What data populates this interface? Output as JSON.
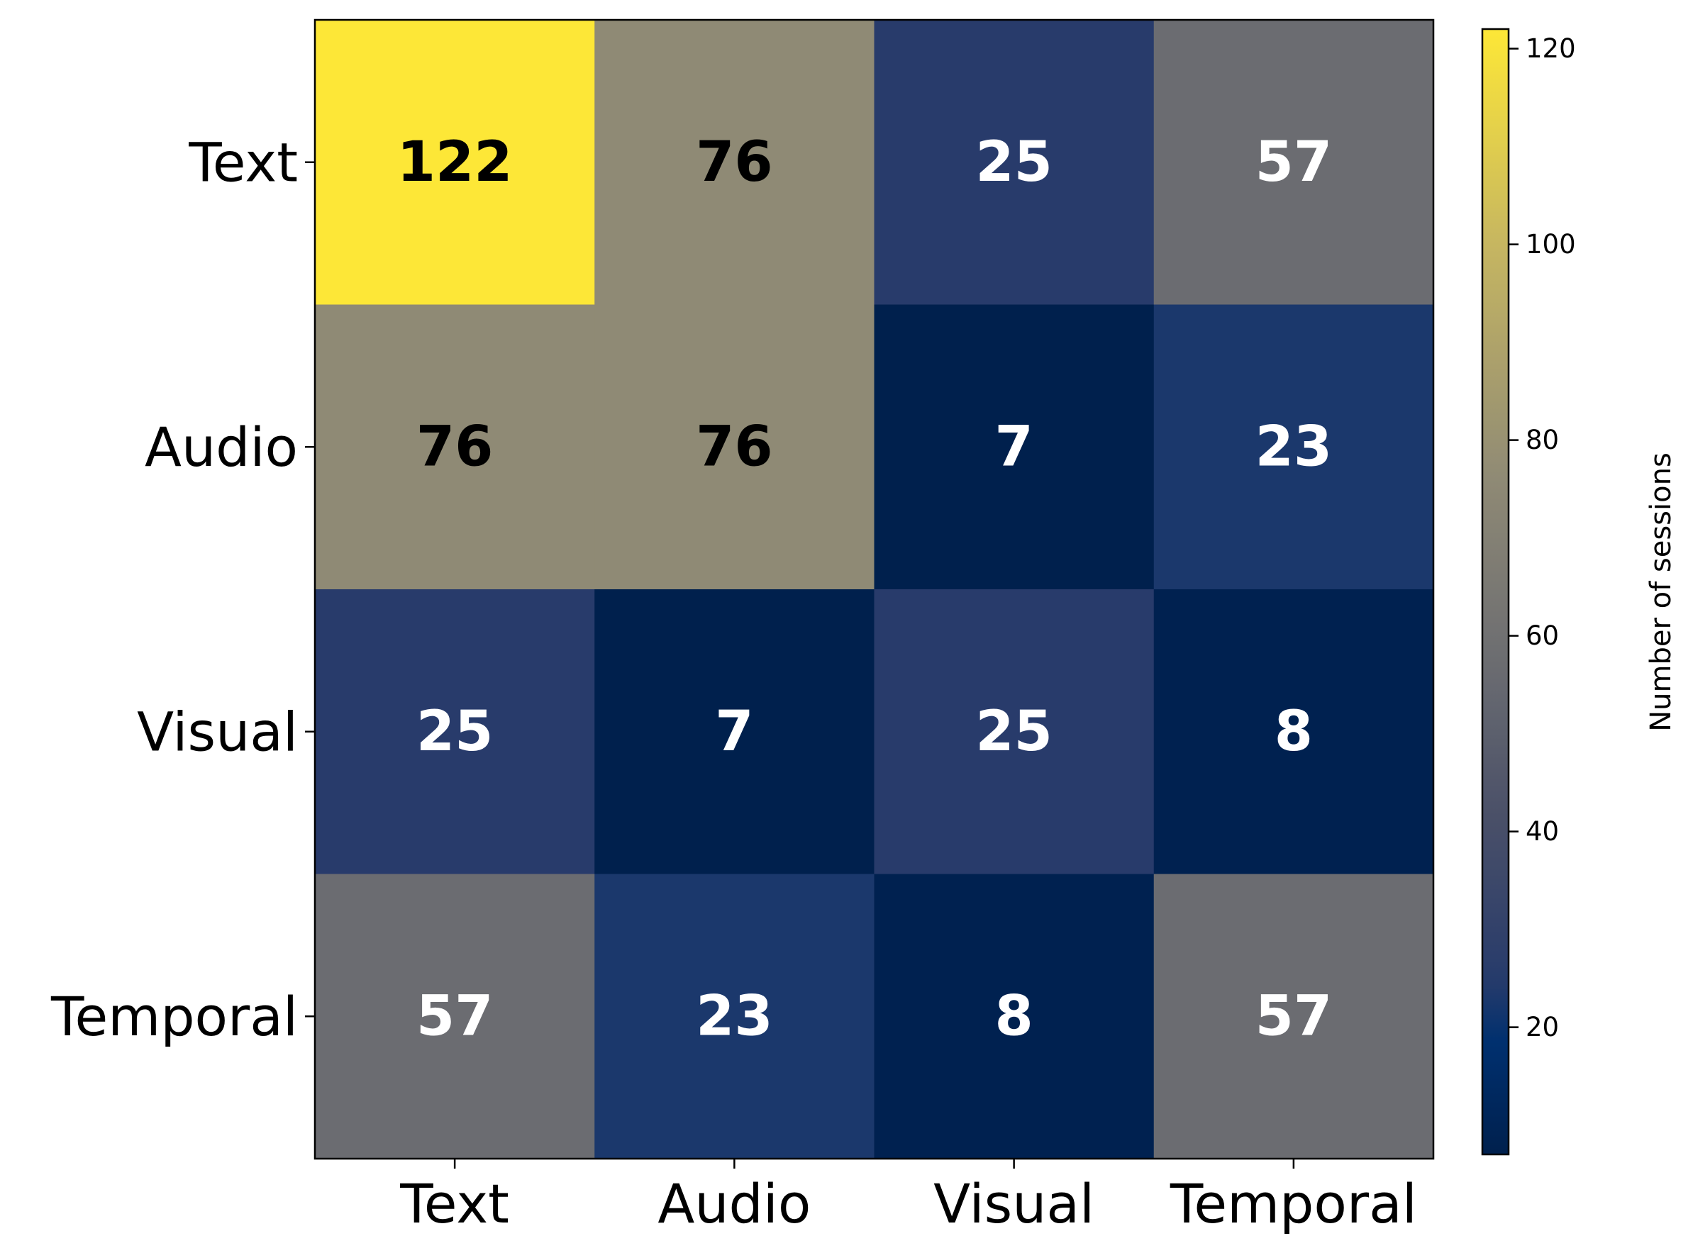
{
  "chart_data": {
    "type": "heatmap",
    "row_labels": [
      "Text",
      "Audio",
      "Visual",
      "Temporal"
    ],
    "col_labels": [
      "Text",
      "Audio",
      "Visual",
      "Temporal"
    ],
    "values": [
      [
        122,
        76,
        25,
        57
      ],
      [
        76,
        76,
        7,
        23
      ],
      [
        25,
        7,
        25,
        8
      ],
      [
        57,
        23,
        8,
        57
      ]
    ],
    "colormap": "cividis",
    "vmin": 7,
    "vmax": 122,
    "colorbar": {
      "label": "Number of sessions",
      "ticks": [
        20,
        40,
        60,
        80,
        100,
        120
      ]
    },
    "annotation_colors": {
      "dark_text": "#000000",
      "light_text": "#ffffff"
    }
  }
}
